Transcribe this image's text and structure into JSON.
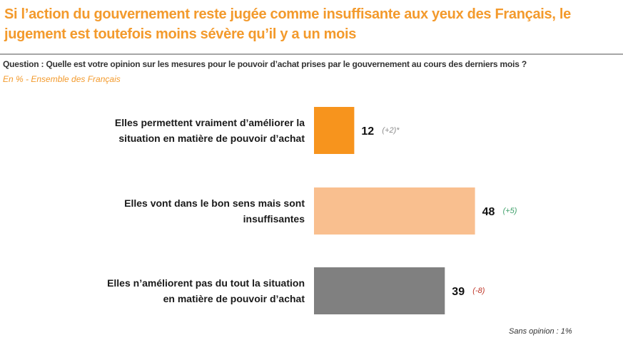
{
  "header": {
    "title": "Si l’action du gouvernement reste jugée comme insuffisante aux yeux des Français, le jugement est toutefois moins sévère qu’il y a un mois",
    "question": "Question : Quelle est votre opinion sur les mesures pour le pouvoir d’achat prises par le gouvernement au cours des derniers mois ?",
    "subtitle": "En % - Ensemble des Français"
  },
  "footer": {
    "note": "Sans opinion : 1%"
  },
  "chart_data": {
    "type": "bar",
    "orientation": "horizontal",
    "title": "Si l’action du gouvernement reste jugée comme insuffisante aux yeux des Français, le jugement est toutefois moins sévère qu’il y a un mois",
    "xlabel": "",
    "ylabel": "",
    "xlim": [
      0,
      100
    ],
    "grid": false,
    "categories": [
      [
        "Elles permettent vraiment d’améliorer la",
        "situation en matière de pouvoir d’achat"
      ],
      [
        "Elles vont dans le bon sens mais sont",
        "insuffisantes"
      ],
      [
        "Elles n’améliorent pas du tout la situation",
        "en matière de pouvoir d’achat"
      ]
    ],
    "values": [
      12,
      48,
      39
    ],
    "value_labels": [
      "12",
      "48",
      "39"
    ],
    "changes": [
      "(+2)*",
      "(+5)",
      "(-8)"
    ],
    "colors": [
      "#f7941d",
      "#f9bf8f",
      "#808080"
    ],
    "change_colors": [
      "#8c8c8c",
      "#3fa06a",
      "#c0392b"
    ]
  }
}
